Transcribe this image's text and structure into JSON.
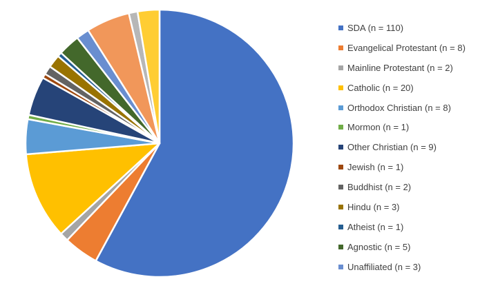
{
  "chart_data": {
    "type": "pie",
    "title": "",
    "legend_position": "right",
    "slices": [
      {
        "label": "SDA (n = 110)",
        "value": 110,
        "color": "#4472C4"
      },
      {
        "label": "Evangelical Protestant (n = 8)",
        "value": 8,
        "color": "#ED7D31"
      },
      {
        "label": "Mainline Protestant (n = 2)",
        "value": 2,
        "color": "#A5A5A5"
      },
      {
        "label": "Catholic (n = 20)",
        "value": 20,
        "color": "#FFC000"
      },
      {
        "label": "Orthodox Christian (n = 8)",
        "value": 8,
        "color": "#5B9BD5"
      },
      {
        "label": "Mormon (n = 1)",
        "value": 1,
        "color": "#70AD47"
      },
      {
        "label": "Other Christian (n = 9)",
        "value": 9,
        "color": "#264478"
      },
      {
        "label": "Jewish (n = 1)",
        "value": 1,
        "color": "#9E480E"
      },
      {
        "label": "Buddhist (n = 2)",
        "value": 2,
        "color": "#636363"
      },
      {
        "label": "Hindu (n = 3)",
        "value": 3,
        "color": "#997300"
      },
      {
        "label": "Atheist (n = 1)",
        "value": 1,
        "color": "#255E91"
      },
      {
        "label": "Agnostic (n = 5)",
        "value": 5,
        "color": "#43682B"
      },
      {
        "label": "Unaffiliated (n = 3)",
        "value": 3,
        "color": "#698ED0"
      },
      {
        "label": "",
        "value": 10,
        "color": "#F1975A"
      },
      {
        "label": "",
        "value": 2,
        "color": "#B7B7B7"
      },
      {
        "label": "",
        "value": 5,
        "color": "#FFCD33"
      }
    ]
  }
}
